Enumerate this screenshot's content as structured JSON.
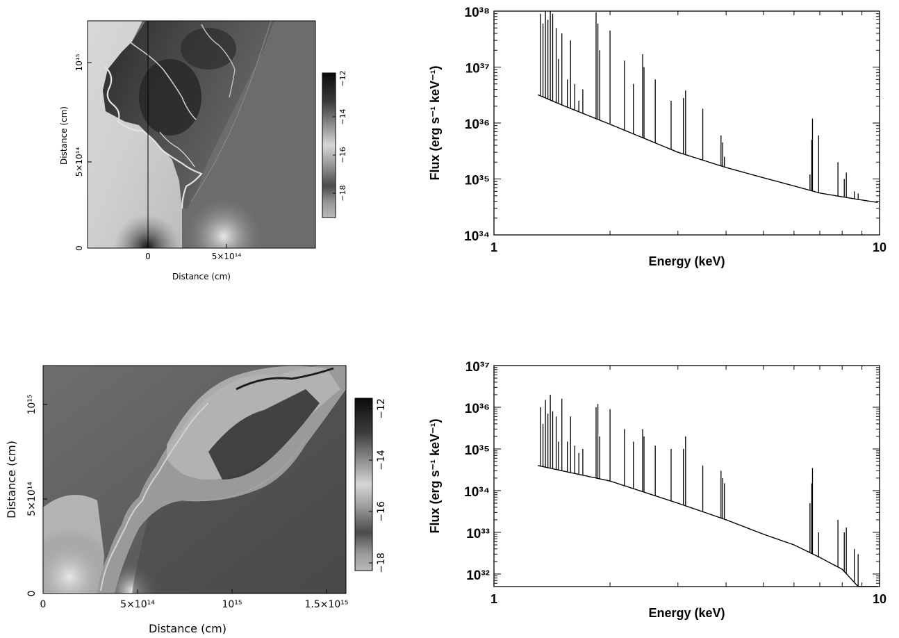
{
  "colors": {
    "background": "#ffffff",
    "axis": "#000000",
    "line": "#000000",
    "map_light": "#d2d2d2",
    "map_mid": "#8a8a8a",
    "map_dark": "#2e2e2e"
  },
  "panels": [
    {
      "kind": "simulation-map",
      "xlabel": "Distance (cm)",
      "ylabel": "Distance (cm)",
      "x_ticks": [
        "0",
        "5×10¹⁴"
      ],
      "y_ticks": [
        "0",
        "5×10¹⁴",
        "10¹⁵"
      ],
      "colorbar_ticks": [
        "−12",
        "−14",
        "−16",
        "−18"
      ]
    },
    {
      "kind": "simulation-map",
      "xlabel": "Distance (cm)",
      "ylabel": "Distance (cm)",
      "x_ticks": [
        "0",
        "5×10¹⁴",
        "10¹⁵",
        "1.5×10¹⁵"
      ],
      "y_ticks": [
        "0",
        "5×10¹⁴",
        "10¹⁵"
      ],
      "colorbar_ticks": [
        "−12",
        "−14",
        "−16",
        "−18"
      ]
    }
  ],
  "chart_data": [
    {
      "type": "heatmap",
      "xlabel": "Distance (cm)",
      "ylabel": "Distance (cm)",
      "x_range": [
        -350000000000000.0,
        900000000000000.0
      ],
      "y_range": [
        0,
        1200000000000000.0
      ],
      "x_ticks": [
        0,
        500000000000000.0
      ],
      "y_ticks": [
        0,
        500000000000000.0,
        1000000000000000.0
      ],
      "colorbar": {
        "range": [
          -19,
          -11.6
        ],
        "ticks": [
          -12,
          -14,
          -16,
          -18
        ],
        "colormap": "grayscale, high values dark"
      }
    },
    {
      "type": "line",
      "xlabel": "Energy (keV)",
      "ylabel": "Flux (erg s⁻¹ keV⁻¹)",
      "x_scale": "log",
      "y_scale": "log",
      "xlim": [
        1,
        10
      ],
      "ylim": [
        1e+34,
        1e+38
      ],
      "x_tick_labels": [
        "1",
        "10"
      ],
      "y_tick_labels": [
        "10³⁴",
        "10³⁵",
        "10³⁶",
        "10³⁷",
        "10³⁸"
      ],
      "continuum": {
        "x": [
          1.3,
          1.5,
          2.0,
          3.0,
          4.0,
          5.0,
          6.0,
          7.0,
          8.0,
          9.0,
          9.9
        ],
        "y": [
          3.2e+36,
          2.1e+36,
          9.5e+35,
          3e+35,
          1.6e+35,
          1.05e+35,
          7.5e+34,
          5.6e+34,
          4.8e+34,
          4.2e+34,
          3.8e+34
        ]
      },
      "lines": {
        "x": [
          1.32,
          1.34,
          1.36,
          1.38,
          1.4,
          1.42,
          1.45,
          1.47,
          1.5,
          1.55,
          1.58,
          1.62,
          1.66,
          1.7,
          1.84,
          1.86,
          1.88,
          2.0,
          2.18,
          2.3,
          2.43,
          2.45,
          2.62,
          2.88,
          3.1,
          3.14,
          3.48,
          3.88,
          3.92,
          3.96,
          6.6,
          6.67,
          6.7,
          6.95,
          7.8,
          8.1,
          8.2,
          8.6,
          8.8
        ],
        "y": [
          9e+37,
          6e+37,
          1.2e+38,
          7e+37,
          1.2e+38,
          9e+37,
          5e+37,
          1.4e+37,
          4e+37,
          6e+36,
          3e+37,
          5e+36,
          2.5e+36,
          4e+36,
          9.5e+37,
          6e+37,
          2e+37,
          4.5e+37,
          1.3e+37,
          5e+36,
          1.7e+37,
          1e+37,
          6e+36,
          2.5e+36,
          2.8e+36,
          3.8e+36,
          1.8e+36,
          6e+35,
          4.5e+35,
          2.5e+35,
          1.2e+35,
          5e+35,
          1.2e+36,
          6e+35,
          2e+35,
          1e+35,
          1.3e+35,
          6e+34,
          5.5e+34
        ]
      }
    },
    {
      "type": "heatmap",
      "xlabel": "Distance (cm)",
      "ylabel": "Distance (cm)",
      "x_range": [
        0,
        1600000000000000.0
      ],
      "y_range": [
        0,
        1200000000000000.0
      ],
      "x_ticks": [
        0,
        500000000000000.0,
        1000000000000000.0,
        1500000000000000.0
      ],
      "y_ticks": [
        0,
        500000000000000.0,
        1000000000000000.0
      ],
      "colorbar": {
        "range": [
          -19,
          -11.6
        ],
        "ticks": [
          -12,
          -14,
          -16,
          -18
        ],
        "colormap": "grayscale, high values dark"
      }
    },
    {
      "type": "line",
      "xlabel": "Energy (keV)",
      "ylabel": "Flux (erg s⁻¹ keV⁻¹)",
      "x_scale": "log",
      "y_scale": "log",
      "xlim": [
        1,
        10
      ],
      "ylim": [
        5e+31,
        1e+37
      ],
      "x_tick_labels": [
        "1",
        "10"
      ],
      "y_tick_labels": [
        "10³²",
        "10³³",
        "10³⁴",
        "10³⁵",
        "10³⁶",
        "10³⁷"
      ],
      "continuum": {
        "x": [
          1.3,
          1.5,
          2.0,
          3.0,
          4.0,
          5.0,
          6.0,
          7.0,
          8.0,
          9.0,
          9.9
        ],
        "y": [
          4e+34,
          3e+34,
          1.7e+34,
          5e+33,
          2e+33,
          9e+32,
          5e+32,
          2.5e+32,
          1.3e+32,
          4e+31,
          1.5e+31
        ]
      },
      "lines": {
        "x": [
          1.32,
          1.34,
          1.36,
          1.38,
          1.4,
          1.42,
          1.45,
          1.47,
          1.5,
          1.55,
          1.58,
          1.62,
          1.66,
          1.7,
          1.84,
          1.86,
          1.88,
          2.0,
          2.18,
          2.3,
          2.43,
          2.45,
          2.62,
          2.88,
          3.1,
          3.14,
          3.48,
          3.88,
          3.92,
          3.96,
          6.6,
          6.67,
          6.7,
          6.95,
          7.8,
          8.1,
          8.2,
          8.6,
          8.8
        ],
        "y": [
          1e+36,
          4e+35,
          1.5e+36,
          7e+35,
          2e+36,
          8e+35,
          6e+35,
          1.5e+35,
          1.6e+36,
          1.5e+35,
          6e+35,
          1.2e+35,
          8e+34,
          1e+35,
          1e+36,
          1.2e+36,
          2e+35,
          9e+35,
          3e+35,
          1.5e+35,
          3e+35,
          2e+35,
          1.2e+35,
          1e+35,
          1e+35,
          2e+35,
          4e+34,
          3e+34,
          2e+34,
          1.5e+34,
          5e+33,
          1.5e+34,
          3.5e+34,
          1e+33,
          2e+33,
          1e+33,
          1.3e+33,
          4e+32,
          3e+32
        ]
      }
    }
  ]
}
